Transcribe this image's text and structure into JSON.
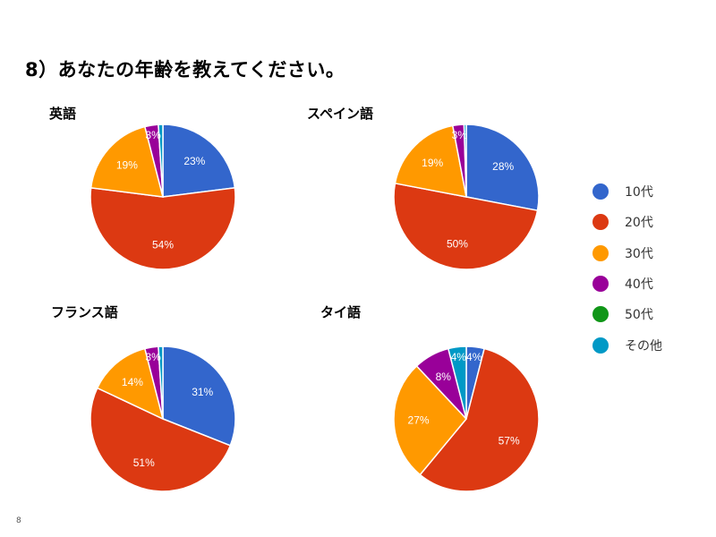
{
  "slide": {
    "title": "8）あなたの年齢を教えてください。",
    "page_number": "8"
  },
  "legend": [
    {
      "label": "10代",
      "color": "#3366cc"
    },
    {
      "label": "20代",
      "color": "#dc3912"
    },
    {
      "label": "30代",
      "color": "#ff9900"
    },
    {
      "label": "40代",
      "color": "#990099"
    },
    {
      "label": "50代",
      "color": "#109618"
    },
    {
      "label": "その他",
      "color": "#0099c6"
    }
  ],
  "chart_data": [
    {
      "type": "pie",
      "title": "英語",
      "categories": [
        "10代",
        "20代",
        "30代",
        "40代",
        "50代",
        "その他"
      ],
      "values": [
        23,
        54,
        19,
        3,
        0,
        1
      ],
      "labels": [
        "23%",
        "54%",
        "19%",
        "3%",
        "",
        ""
      ]
    },
    {
      "type": "pie",
      "title": "スペイン語",
      "categories": [
        "10代",
        "20代",
        "30代",
        "40代",
        "50代",
        "その他"
      ],
      "values": [
        28,
        50,
        19,
        2.5,
        0,
        0.5
      ],
      "labels": [
        "28%",
        "50%",
        "19%",
        "3%",
        "",
        ""
      ]
    },
    {
      "type": "pie",
      "title": "フランス語",
      "categories": [
        "10代",
        "20代",
        "30代",
        "40代",
        "50代",
        "その他"
      ],
      "values": [
        31,
        51,
        14,
        3,
        0,
        1
      ],
      "labels": [
        "31%",
        "51%",
        "14%",
        "3%",
        "",
        ""
      ]
    },
    {
      "type": "pie",
      "title": "タイ語",
      "categories": [
        "10代",
        "20代",
        "30代",
        "40代",
        "50代",
        "その他"
      ],
      "values": [
        4,
        57,
        27,
        8,
        0,
        4
      ],
      "labels": [
        "4%",
        "57%",
        "27%",
        "8%",
        "",
        "4%"
      ]
    }
  ]
}
